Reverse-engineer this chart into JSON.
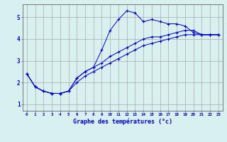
{
  "xlabel": "Graphe des températures (°c)",
  "ylabel": "",
  "background_color": "#d8f0f0",
  "grid_color": "#aaaaaa",
  "line_color": "#0000cc",
  "x_ticks": [
    0,
    1,
    2,
    3,
    4,
    5,
    6,
    7,
    8,
    9,
    10,
    11,
    12,
    13,
    14,
    15,
    16,
    17,
    18,
    19,
    20,
    21,
    22,
    23
  ],
  "y_ticks": [
    1,
    2,
    3,
    4,
    5
  ],
  "xlim": [
    -0.5,
    23.5
  ],
  "ylim": [
    0.7,
    5.6
  ],
  "series1_x": [
    0,
    1,
    2,
    3,
    4,
    5,
    6,
    7,
    8,
    9,
    10,
    11,
    12,
    13,
    14,
    15,
    16,
    17,
    18,
    19,
    20,
    21,
    22,
    23
  ],
  "series1_y": [
    2.4,
    1.8,
    1.6,
    1.5,
    1.5,
    1.6,
    2.2,
    2.5,
    2.7,
    3.5,
    4.4,
    4.9,
    5.3,
    5.2,
    4.8,
    4.9,
    4.8,
    4.7,
    4.7,
    4.6,
    4.3,
    4.2,
    4.2,
    4.2
  ],
  "series2_x": [
    0,
    1,
    2,
    3,
    4,
    5,
    6,
    7,
    8,
    9,
    10,
    11,
    12,
    13,
    14,
    15,
    16,
    17,
    18,
    19,
    20,
    21,
    22,
    23
  ],
  "series2_y": [
    2.4,
    1.8,
    1.6,
    1.5,
    1.5,
    1.6,
    2.2,
    2.5,
    2.7,
    2.9,
    3.2,
    3.4,
    3.6,
    3.8,
    4.0,
    4.1,
    4.1,
    4.2,
    4.3,
    4.4,
    4.4,
    4.2,
    4.2,
    4.2
  ],
  "series3_x": [
    0,
    1,
    2,
    3,
    4,
    5,
    6,
    7,
    8,
    9,
    10,
    11,
    12,
    13,
    14,
    15,
    16,
    17,
    18,
    19,
    20,
    21,
    22,
    23
  ],
  "series3_y": [
    2.4,
    1.8,
    1.6,
    1.5,
    1.5,
    1.6,
    2.0,
    2.3,
    2.5,
    2.7,
    2.9,
    3.1,
    3.3,
    3.5,
    3.7,
    3.8,
    3.9,
    4.0,
    4.1,
    4.2,
    4.2,
    4.2,
    4.2,
    4.2
  ]
}
